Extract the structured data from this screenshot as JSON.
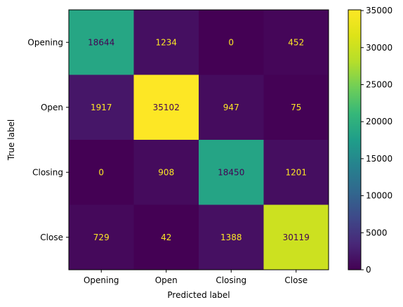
{
  "chart_data": {
    "type": "heatmap",
    "title": "",
    "xlabel": "Predicted label",
    "ylabel": "True label",
    "x_categories": [
      "Opening",
      "Open",
      "Closing",
      "Close"
    ],
    "y_categories": [
      "Opening",
      "Open",
      "Closing",
      "Close"
    ],
    "matrix": [
      [
        18644,
        1234,
        0,
        452
      ],
      [
        1917,
        35102,
        947,
        75
      ],
      [
        0,
        908,
        18450,
        1201
      ],
      [
        729,
        42,
        1388,
        30119
      ]
    ],
    "colormap": "viridis",
    "vmin": 0,
    "vmax": 35102,
    "colorbar_ticks": [
      0,
      5000,
      10000,
      15000,
      20000,
      25000,
      30000,
      35000
    ],
    "colorbar_tick_labels": [
      "0",
      "5000",
      "10000",
      "15000",
      "20000",
      "25000",
      "30000",
      "35000"
    ],
    "text_color_light": "#fde725",
    "text_color_dark": "#440154"
  }
}
